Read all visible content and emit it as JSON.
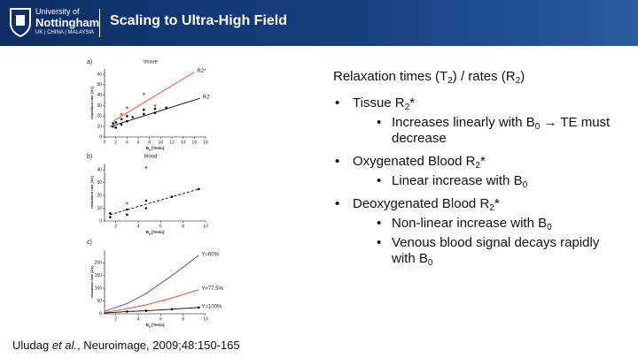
{
  "header": {
    "university": "University of",
    "name": "Nottingham",
    "campuses": "UK | CHINA | MALAYSIA",
    "title": "Scaling to Ultra-High Field"
  },
  "heading": [
    "Relaxation times (T",
    "2",
    ") / rates (R",
    "2",
    ")"
  ],
  "bullets": [
    {
      "text": [
        "Tissue R",
        "2",
        "*"
      ],
      "sub": [
        [
          "Increases linearly with B",
          "0",
          " → TE must decrease"
        ]
      ]
    },
    {
      "text": [
        "Oxygenated Blood R",
        "2",
        "*"
      ],
      "sub": [
        [
          "Linear increase with B",
          "0"
        ]
      ]
    },
    {
      "text": [
        "Deoxygenated Blood R",
        "2",
        "*"
      ],
      "sub": [
        [
          "Non-linear increase with B",
          "0"
        ],
        [
          "Venous blood signal decays rapidly with B",
          "0"
        ]
      ]
    }
  ],
  "citation": [
    "Uludag ",
    "et al.",
    ", Neuroimage, 2009;48:150-165"
  ],
  "chart_data": [
    {
      "type": "line",
      "panel": "a)",
      "title": "tissue",
      "ylabel": "relaxation rate [1/s]",
      "xlabel": [
        "B",
        "0",
        " [Tesla]"
      ],
      "xlim": [
        0,
        18
      ],
      "xticks": [
        0,
        2,
        4,
        6,
        8,
        10,
        12,
        14,
        16,
        18
      ],
      "ylim": [
        0,
        65
      ],
      "yticks": [
        0,
        10,
        20,
        30,
        40,
        50,
        60
      ],
      "series": [
        {
          "name": "R2*",
          "color": "#e8412c",
          "x": [
            1.5,
            16
          ],
          "values": [
            15,
            62
          ]
        },
        {
          "name": "R2",
          "color": "#000000",
          "x": [
            1,
            17
          ],
          "values": [
            10,
            37
          ]
        },
        {
          "style": "points",
          "color": "#e8412c",
          "x": [
            3,
            4,
            7,
            9
          ],
          "values": [
            22,
            28,
            41,
            30
          ]
        },
        {
          "style": "points",
          "color": "#000000",
          "x": [
            1.5,
            1.5,
            2,
            2,
            3,
            3,
            4,
            4,
            5,
            7,
            7,
            9,
            9,
            11
          ],
          "values": [
            10,
            13,
            9,
            14,
            12,
            17,
            15,
            20,
            19,
            22,
            26,
            23,
            27,
            28
          ]
        }
      ]
    },
    {
      "type": "line",
      "panel": "b)",
      "title": "blood",
      "ylabel": "relaxation rate [1/s]",
      "xlabel": [
        "B",
        "0",
        " [Tesla]"
      ],
      "xlim": [
        1,
        10
      ],
      "xticks": [
        2,
        4,
        6,
        8,
        10
      ],
      "ylim": [
        0,
        45
      ],
      "yticks": [
        0,
        10,
        20,
        30,
        40
      ],
      "series": [
        {
          "style": "dashed",
          "color": "#000000",
          "x": [
            1.5,
            9.4
          ],
          "values": [
            5,
            25
          ]
        },
        {
          "style": "points",
          "color": "#e8412c",
          "x": [
            3,
            4.7
          ],
          "values": [
            14,
            42
          ]
        },
        {
          "style": "points",
          "color": "#000000",
          "x": [
            1.5,
            1.5,
            3,
            3,
            4.7,
            4.7,
            7,
            9.4
          ],
          "values": [
            6,
            3,
            9,
            5,
            16,
            10,
            19,
            25
          ]
        }
      ]
    },
    {
      "type": "line",
      "panel": "c)",
      "ylabel": "relaxation rate [1/s]",
      "xlabel": [
        "B",
        "0",
        " [Tesla]"
      ],
      "xlim": [
        1,
        10
      ],
      "xticks": [
        2,
        4,
        6,
        8,
        10
      ],
      "ylim": [
        0,
        250
      ],
      "yticks": [
        0,
        50,
        100,
        150,
        200
      ],
      "series": [
        {
          "name": "Y=60%",
          "color": "#2a3fd0",
          "x": [
            1,
            3,
            4.7,
            7,
            9.4
          ],
          "values": [
            10,
            40,
            80,
            150,
            230
          ]
        },
        {
          "name": "Y=77.5%",
          "color": "#e8412c",
          "x": [
            1,
            3,
            4.7,
            7,
            9.4
          ],
          "values": [
            5,
            20,
            35,
            62,
            95
          ]
        },
        {
          "name": "Y=100%",
          "color": "#000000",
          "x": [
            1,
            3,
            4.7,
            7,
            9.4
          ],
          "values": [
            3,
            9,
            12,
            18,
            25
          ]
        },
        {
          "style": "points",
          "color": "#000000",
          "x": [
            3,
            4.7,
            7,
            9.4
          ],
          "values": [
            9,
            12,
            18,
            25
          ]
        }
      ]
    }
  ]
}
